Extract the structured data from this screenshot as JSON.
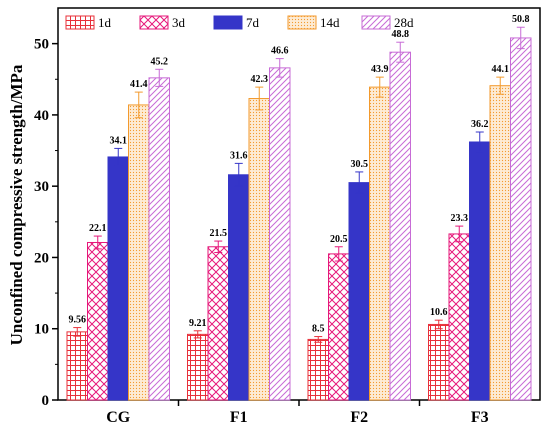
{
  "chart_data": {
    "type": "bar",
    "title": "",
    "xlabel": "",
    "ylabel": "Unconfined compressive strength/MPa",
    "ylim": [
      0,
      55
    ],
    "yticks": [
      0,
      10,
      20,
      30,
      40,
      50
    ],
    "categories": [
      "CG",
      "F1",
      "F2",
      "F3"
    ],
    "legend_position": "top",
    "grid": false,
    "series": [
      {
        "name": "1d",
        "values": [
          9.56,
          9.21,
          8.5,
          10.6
        ],
        "labels": [
          "9.56",
          "9.21",
          "8.5",
          "10.6"
        ],
        "error": [
          0.6,
          0.5,
          0.4,
          0.6
        ],
        "color": "#e8303a",
        "pattern": "grid"
      },
      {
        "name": "3d",
        "values": [
          22.1,
          21.5,
          20.5,
          23.3
        ],
        "labels": [
          "22.1",
          "21.5",
          "20.5",
          "23.3"
        ],
        "error": [
          0.9,
          0.8,
          1.0,
          1.1
        ],
        "color": "#e6177a",
        "pattern": "crosshatch"
      },
      {
        "name": "7d",
        "values": [
          34.1,
          31.6,
          30.5,
          36.2
        ],
        "labels": [
          "34.1",
          "31.6",
          "30.5",
          "36.2"
        ],
        "error": [
          1.2,
          1.6,
          1.5,
          1.4
        ],
        "color": "#3535c8",
        "pattern": "solid"
      },
      {
        "name": "14d",
        "values": [
          41.4,
          42.3,
          43.9,
          44.1
        ],
        "labels": [
          "41.4",
          "42.3",
          "43.9",
          "44.1"
        ],
        "error": [
          1.8,
          1.6,
          1.4,
          1.2
        ],
        "color": "#f39a2d",
        "pattern": "dots"
      },
      {
        "name": "28d",
        "values": [
          45.2,
          46.6,
          48.8,
          50.8
        ],
        "labels": [
          "45.2",
          "46.6",
          "48.8",
          "50.8"
        ],
        "error": [
          1.2,
          1.3,
          1.4,
          1.5
        ],
        "color": "#c76bd6",
        "pattern": "diagonal"
      }
    ]
  }
}
